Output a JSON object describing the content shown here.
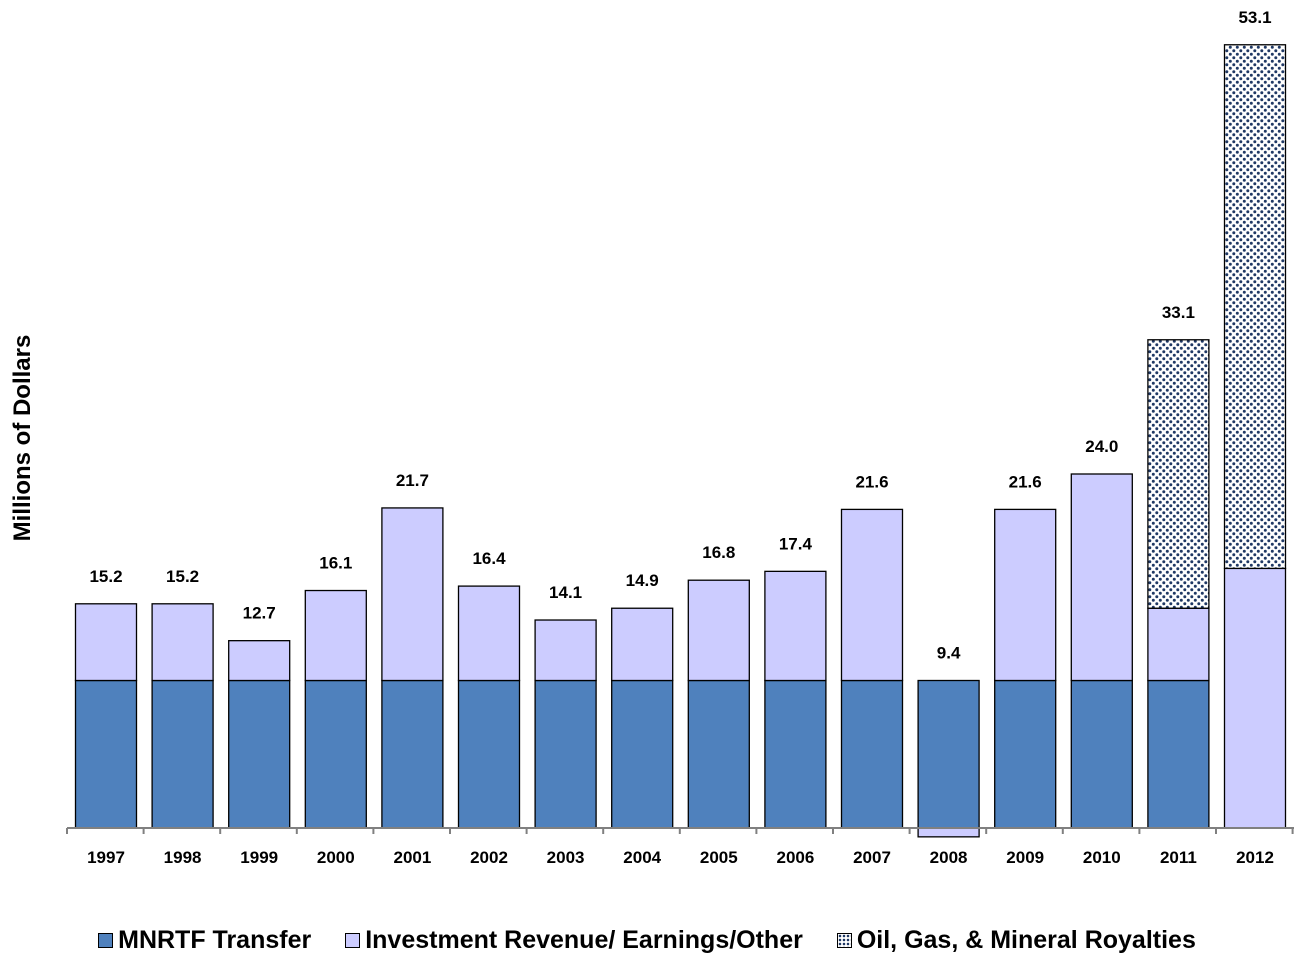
{
  "colors": {
    "mnrtf_transfer": "#4f81bd",
    "investment_revenue": "#ccccff",
    "royalties_background": "#ffffff",
    "royalties_dots": "#1f3864",
    "bar_outline": "#000000",
    "axis": "#808080"
  },
  "chart_data": {
    "type": "bar",
    "stacked": true,
    "title": "",
    "xlabel": "",
    "ylabel": "Millions of Dollars",
    "ylim": [
      -0.6,
      54
    ],
    "grid": false,
    "legend_position": "bottom",
    "categories": [
      "1997",
      "1998",
      "1999",
      "2000",
      "2001",
      "2002",
      "2003",
      "2004",
      "2005",
      "2006",
      "2007",
      "2008",
      "2009",
      "2010",
      "2011",
      "2012"
    ],
    "totals": [
      "15.2",
      "15.2",
      "12.7",
      "16.1",
      "21.7",
      "16.4",
      "14.1",
      "14.9",
      "16.8",
      "17.4",
      "21.6",
      "9.4",
      "21.6",
      "24.0",
      "33.1",
      "53.1"
    ],
    "series": [
      {
        "name": "MNRTF Transfer",
        "pattern": "solid",
        "values": [
          10.0,
          10.0,
          10.0,
          10.0,
          10.0,
          10.0,
          10.0,
          10.0,
          10.0,
          10.0,
          10.0,
          10.0,
          10.0,
          10.0,
          10.0,
          0.0
        ]
      },
      {
        "name": "Investment Revenue/ Earnings/Other",
        "pattern": "solid",
        "values": [
          5.2,
          5.2,
          2.7,
          6.1,
          11.7,
          6.4,
          4.1,
          4.9,
          6.8,
          7.4,
          11.6,
          -0.6,
          11.6,
          14.0,
          4.9,
          17.6
        ]
      },
      {
        "name": "Oil, Gas, & Mineral Royalties",
        "pattern": "dotted",
        "values": [
          0,
          0,
          0,
          0,
          0,
          0,
          0,
          0,
          0,
          0,
          0,
          0,
          0,
          0,
          18.2,
          35.5
        ]
      }
    ]
  }
}
